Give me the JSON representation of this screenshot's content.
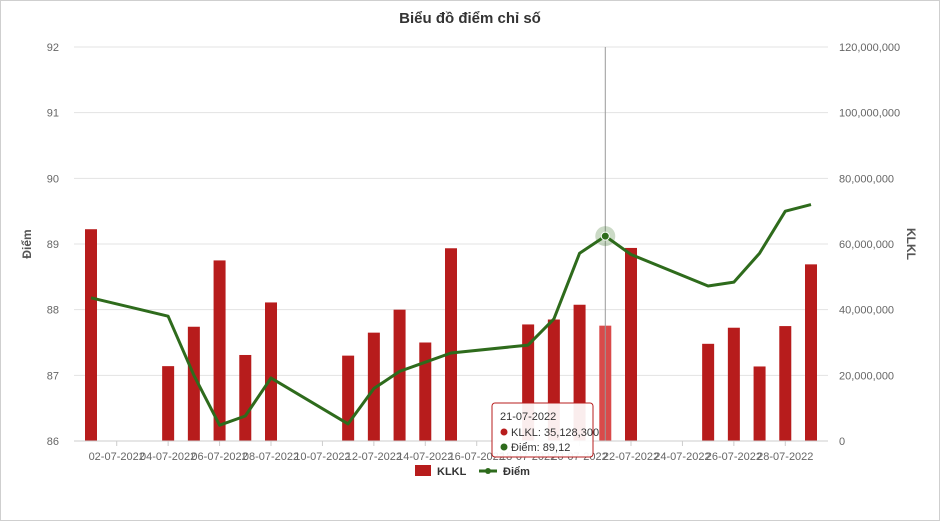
{
  "chart_data": {
    "type": "bar",
    "title": "Biểu đồ điểm chỉ số",
    "y_left_label": "Điểm",
    "y_right_label": "KLKL",
    "y_left_ticks": [
      "92",
      "91",
      "90",
      "89",
      "88",
      "87",
      "86"
    ],
    "y_right_ticks": [
      "120,000,000",
      "100,000,000",
      "80,000,000",
      "60,000,000",
      "40,000,000",
      "20,000,000",
      "0"
    ],
    "x_tick_labels": [
      "02-07-2022",
      "04-07-2022",
      "06-07-2022",
      "08-07-2022",
      "10-07-2022",
      "12-07-2022",
      "14-07-2022",
      "16-07-2022",
      "18-07-2022",
      "20-07-2022",
      "22-07-2022",
      "24-07-2022",
      "26-07-2022",
      "28-07-2022"
    ],
    "ylim_left": [
      86,
      92
    ],
    "ylim_right": [
      0,
      120000000
    ],
    "x_start": "2022-07-01",
    "x_end": "2022-07-29",
    "grid": true,
    "legend_position": "bottom",
    "series": [
      {
        "name": "KLKL",
        "type": "bar",
        "axis": "right",
        "color": "#b71c1c",
        "points": [
          {
            "date": "2022-07-01",
            "value": 64500000
          },
          {
            "date": "2022-07-04",
            "value": 22800000
          },
          {
            "date": "2022-07-05",
            "value": 34800000
          },
          {
            "date": "2022-07-06",
            "value": 55000000
          },
          {
            "date": "2022-07-07",
            "value": 26200000
          },
          {
            "date": "2022-07-08",
            "value": 42200000
          },
          {
            "date": "2022-07-11",
            "value": 26000000
          },
          {
            "date": "2022-07-12",
            "value": 33000000
          },
          {
            "date": "2022-07-13",
            "value": 40000000
          },
          {
            "date": "2022-07-14",
            "value": 30000000
          },
          {
            "date": "2022-07-15",
            "value": 58700000
          },
          {
            "date": "2022-07-18",
            "value": 35500000
          },
          {
            "date": "2022-07-19",
            "value": 37000000
          },
          {
            "date": "2022-07-20",
            "value": 41500000
          },
          {
            "date": "2022-07-21",
            "value": 35128300
          },
          {
            "date": "2022-07-22",
            "value": 58800000
          },
          {
            "date": "2022-07-25",
            "value": 29600000
          },
          {
            "date": "2022-07-26",
            "value": 34500000
          },
          {
            "date": "2022-07-27",
            "value": 22700000
          },
          {
            "date": "2022-07-28",
            "value": 35000000
          },
          {
            "date": "2022-07-29",
            "value": 53800000
          }
        ]
      },
      {
        "name": "Điểm",
        "type": "line",
        "axis": "left",
        "color": "#2e6b1c",
        "points": [
          {
            "date": "2022-07-01",
            "value": 88.18
          },
          {
            "date": "2022-07-04",
            "value": 87.9
          },
          {
            "date": "2022-07-05",
            "value": 87.0
          },
          {
            "date": "2022-07-06",
            "value": 86.24
          },
          {
            "date": "2022-07-07",
            "value": 86.38
          },
          {
            "date": "2022-07-08",
            "value": 86.96
          },
          {
            "date": "2022-07-11",
            "value": 86.26
          },
          {
            "date": "2022-07-12",
            "value": 86.8
          },
          {
            "date": "2022-07-13",
            "value": 87.06
          },
          {
            "date": "2022-07-14",
            "value": 87.2
          },
          {
            "date": "2022-07-15",
            "value": 87.34
          },
          {
            "date": "2022-07-18",
            "value": 87.46
          },
          {
            "date": "2022-07-19",
            "value": 87.86
          },
          {
            "date": "2022-07-20",
            "value": 88.86
          },
          {
            "date": "2022-07-21",
            "value": 89.12
          },
          {
            "date": "2022-07-22",
            "value": 88.84
          },
          {
            "date": "2022-07-25",
            "value": 88.36
          },
          {
            "date": "2022-07-26",
            "value": 88.42
          },
          {
            "date": "2022-07-27",
            "value": 88.86
          },
          {
            "date": "2022-07-28",
            "value": 89.5
          },
          {
            "date": "2022-07-29",
            "value": 89.6
          }
        ]
      }
    ],
    "highlight_date": "2022-07-21",
    "tooltip": {
      "date": "21-07-2022",
      "klkl_label": "KLKL: 35,128,300",
      "diem_label": "Điểm: 89,12"
    }
  }
}
